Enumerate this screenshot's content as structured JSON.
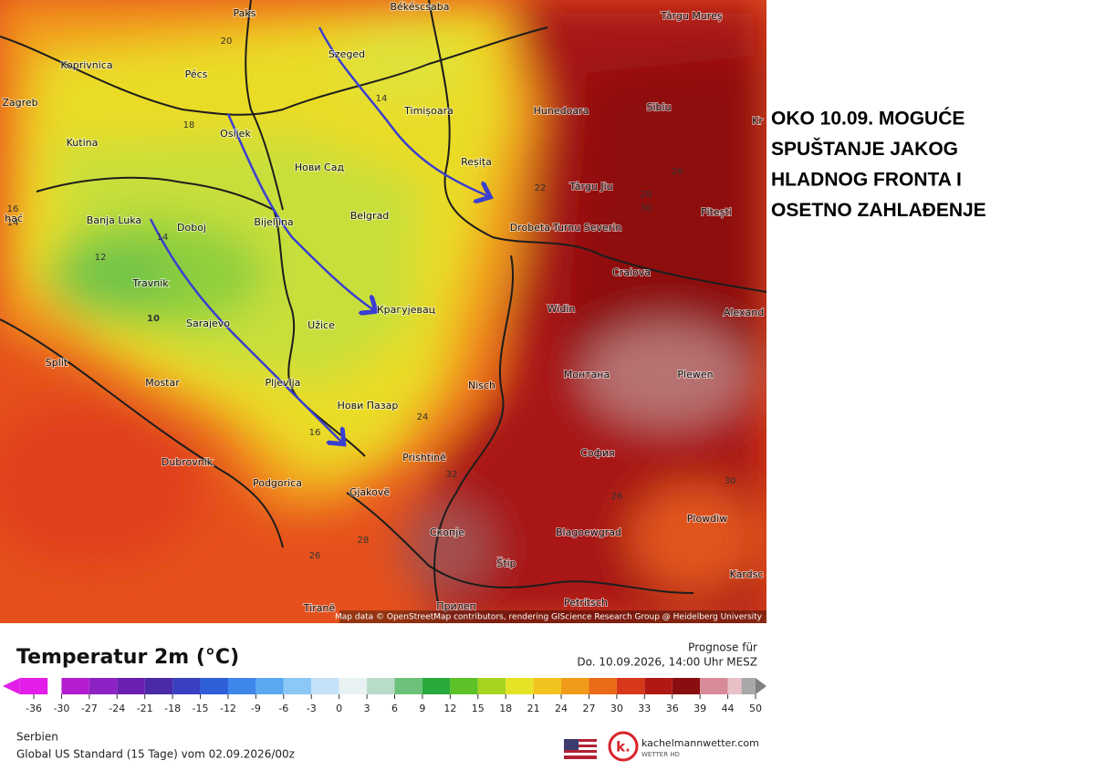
{
  "annotation": [
    "OKO 10.09. MOGUĆE",
    "SPUŠTANJE JAKOG",
    "HLADNOG FRONTA I",
    "OSETNO ZAHLAĐENJE"
  ],
  "map": {
    "cities": [
      "Paks",
      "Békéscsaba",
      "Târgu Mureș",
      "Koprivnica",
      "Pécs",
      "Szeged",
      "Zagreb",
      "Timișoara",
      "Hunedoara",
      "Sibiu",
      "Kr",
      "Osijek",
      "Kutina",
      "Нови Сад",
      "Reșița",
      "Târgu Jiu",
      "Pitești",
      "Banja Luka",
      "Doboj",
      "Bijeljina",
      "Belgrad",
      "Drobeta-Turnu Severin",
      "Craiova",
      "Travnik",
      "Крагујевац",
      "Widin",
      "Alexand",
      "Sarajevo",
      "Užice",
      "Split",
      "Mostar",
      "Pljevlja",
      "Nisch",
      "Монтана",
      "Plewen",
      "Нови Пазар",
      "Prishtinë",
      "София",
      "Dubrovnik",
      "Podgorica",
      "Gjakovë",
      "Скопје",
      "Blagoewgrad",
      "Plowdiw",
      "Štip",
      "Kardsc",
      "Petritsch",
      "Tiranë",
      "Прилеп",
      "hać"
    ],
    "isotherm_labels": [
      20,
      18,
      14,
      12,
      14,
      16,
      14,
      10,
      16,
      22,
      24,
      26,
      28,
      30,
      32,
      28,
      26,
      26,
      30
    ],
    "attribution": "Map data © OpenStreetMap contributors, rendering GIScience Research Group @ Heidelberg University"
  },
  "legend": {
    "title": "Temperatur 2m (°C)",
    "forecast_label": "Prognose für",
    "forecast_time": "Do. 10.09.2026, 14:00 Uhr MESZ",
    "ticks": [
      -36,
      -30,
      -27,
      -24,
      -21,
      -18,
      -15,
      -12,
      -9,
      -6,
      -3,
      0,
      3,
      6,
      9,
      12,
      15,
      18,
      21,
      24,
      27,
      30,
      33,
      36,
      39,
      44,
      50
    ]
  },
  "footer": {
    "region": "Serbien",
    "model": "Global US Standard (15 Tage) vom 02.09.2026/00z",
    "brand": "kachelmannwetter.com",
    "brand_sub": "WETTER HD",
    "logo_letter": "k."
  }
}
